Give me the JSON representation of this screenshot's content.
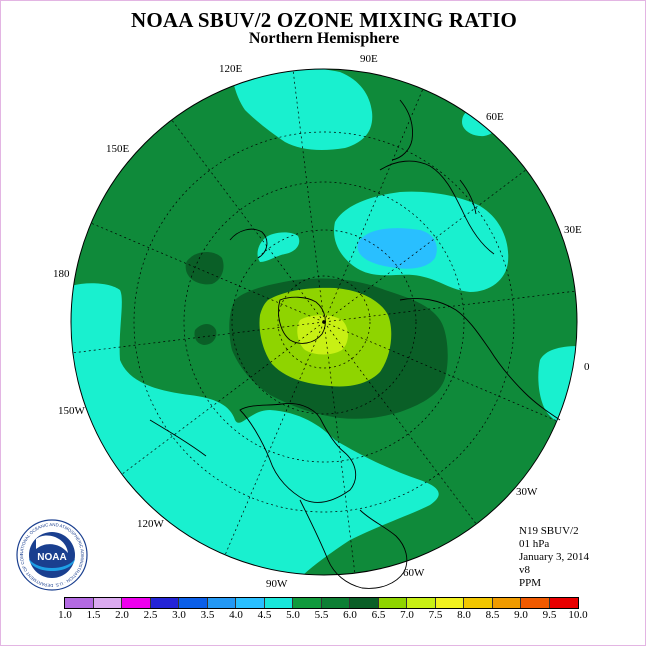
{
  "title": "NOAA SBUV/2 OZONE MIXING RATIO",
  "subtitle": "Northern Hemisphere",
  "longitude_labels": {
    "lon_90e": "90E",
    "lon_60e": "60E",
    "lon_30e": "30E",
    "lon_0": "0",
    "lon_30w": "30W",
    "lon_60w": "60W",
    "lon_90w": "90W",
    "lon_120w": "120W",
    "lon_150w": "150W",
    "lon_180": "180",
    "lon_150e": "150E",
    "lon_120e": "120E"
  },
  "info": {
    "satellite": "N19 SBUV/2",
    "level": "01 hPa",
    "date": "January 3, 2014",
    "version": "v8",
    "units": "PPM"
  },
  "logo_text": "NOAA",
  "logo_ring_text": "NATIONAL OCEANIC AND ATMOSPHERIC ADMINISTRATION · U.S. DEPARTMENT OF COMMERCE",
  "colorbar": {
    "labels": [
      "1.0",
      "1.5",
      "2.0",
      "2.5",
      "3.0",
      "3.5",
      "4.0",
      "4.5",
      "5.0",
      "5.5",
      "6.0",
      "6.5",
      "7.0",
      "7.5",
      "8.0",
      "8.5",
      "9.0",
      "9.5",
      "10.0"
    ],
    "colors": [
      "#b36ae2",
      "#dbaaf0",
      "#ee00ee",
      "#2424d6",
      "#0a5ee8",
      "#2398f4",
      "#29bfff",
      "#19e6da",
      "#0f9a3c",
      "#0d7f34",
      "#0a5f27",
      "#8fd400",
      "#c8f014",
      "#f2f21e",
      "#f2c600",
      "#f09b00",
      "#f05a00",
      "#e80000",
      "#9a5a3c"
    ]
  },
  "colors": {
    "dark_green": "#0a5f27",
    "green": "#0f8a3a",
    "cyan": "#19f0cf",
    "light_blue": "#29bfff",
    "yellow_green": "#c8f014",
    "lime": "#8fd400"
  }
}
